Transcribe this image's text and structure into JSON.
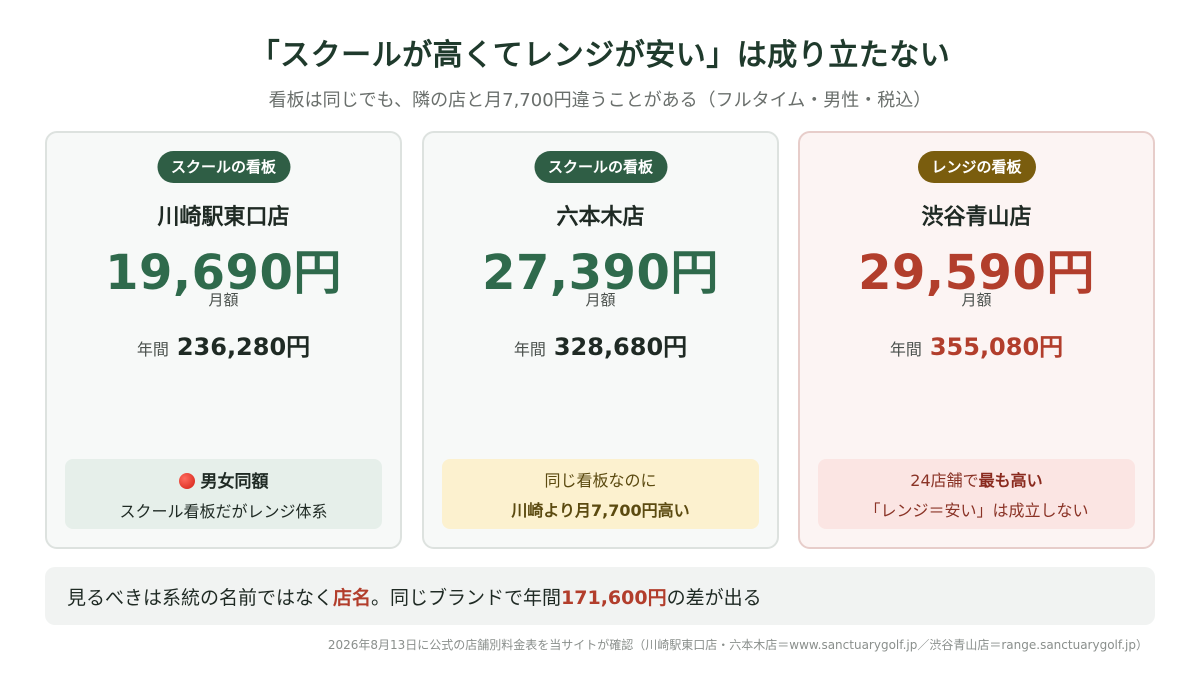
{
  "title": "「スクールが高くてレンジが安い」は成り立たない",
  "subtitle": "看板は同じでも、隣の店と月7,700円違うことがある（フルタイム・男性・税込）",
  "cards": [
    {
      "badge": "スクールの看板",
      "store": "川崎駅東口店",
      "price": "19,690円",
      "monthly_label": "月額",
      "annual_label": "年間",
      "annual_value": "236,280円",
      "note_line1": "男女同額",
      "note_line2": "スクール看板だがレンジ体系"
    },
    {
      "badge": "スクールの看板",
      "store": "六本木店",
      "price": "27,390円",
      "monthly_label": "月額",
      "annual_label": "年間",
      "annual_value": "328,680円",
      "note_line1": "同じ看板なのに",
      "note_line2": "川崎より月7,700円高い"
    },
    {
      "badge": "レンジの看板",
      "store": "渋谷青山店",
      "price": "29,590円",
      "monthly_label": "月額",
      "annual_label": "年間",
      "annual_value": "355,080円",
      "note_line1_prefix": "24店舗で",
      "note_line1_strong": "最も高い",
      "note_line2": "「レンジ＝安い」は成立しない"
    }
  ],
  "summary": {
    "part1": "見るべきは系統の名前ではなく",
    "hl1": "店名",
    "part2": "。同じブランドで年間",
    "hl2": "171,600円",
    "part3": "の差が出る"
  },
  "footer": "2026年8月13日に公式の店舗別料金表を当サイトが確認（川崎駅東口店・六本木店＝www.sanctuarygolf.jp／渋谷青山店＝range.sanctuarygolf.jp）"
}
